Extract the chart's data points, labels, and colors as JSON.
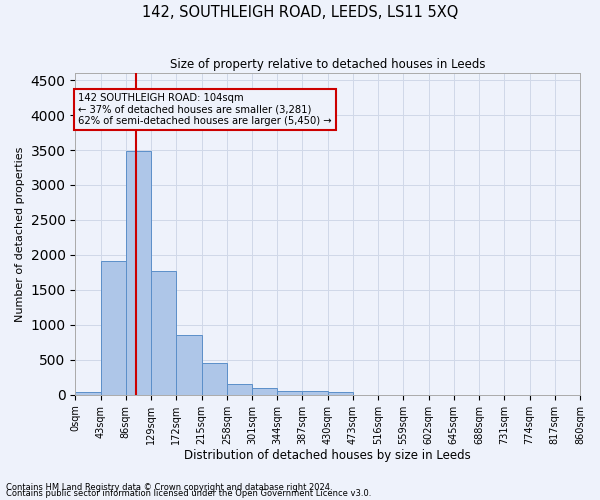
{
  "title": "142, SOUTHLEIGH ROAD, LEEDS, LS11 5XQ",
  "subtitle": "Size of property relative to detached houses in Leeds",
  "xlabel": "Distribution of detached houses by size in Leeds",
  "ylabel": "Number of detached properties",
  "annotation_title": "142 SOUTHLEIGH ROAD: 104sqm",
  "annotation_line2": "← 37% of detached houses are smaller (3,281)",
  "annotation_line3": "62% of semi-detached houses are larger (5,450) →",
  "property_size_sqm": 104,
  "footnote1": "Contains HM Land Registry data © Crown copyright and database right 2024.",
  "footnote2": "Contains public sector information licensed under the Open Government Licence v3.0.",
  "bin_labels": [
    "0sqm",
    "43sqm",
    "86sqm",
    "129sqm",
    "172sqm",
    "215sqm",
    "258sqm",
    "301sqm",
    "344sqm",
    "387sqm",
    "430sqm",
    "473sqm",
    "516sqm",
    "559sqm",
    "602sqm",
    "645sqm",
    "688sqm",
    "731sqm",
    "774sqm",
    "817sqm",
    "860sqm"
  ],
  "bin_edges": [
    0,
    43,
    86,
    129,
    172,
    215,
    258,
    301,
    344,
    387,
    430,
    473,
    516,
    559,
    602,
    645,
    688,
    731,
    774,
    817,
    860
  ],
  "bar_values": [
    40,
    1920,
    3480,
    1770,
    860,
    460,
    160,
    100,
    60,
    55,
    35,
    0,
    0,
    0,
    0,
    0,
    0,
    0,
    0,
    0
  ],
  "bar_color": "#aec6e8",
  "bar_edge_color": "#5b8fc9",
  "grid_color": "#d0d8e8",
  "background_color": "#eef2fb",
  "annotation_box_color": "#cc0000",
  "vline_color": "#cc0000",
  "ylim": [
    0,
    4600
  ],
  "yticks": [
    0,
    500,
    1000,
    1500,
    2000,
    2500,
    3000,
    3500,
    4000,
    4500
  ]
}
